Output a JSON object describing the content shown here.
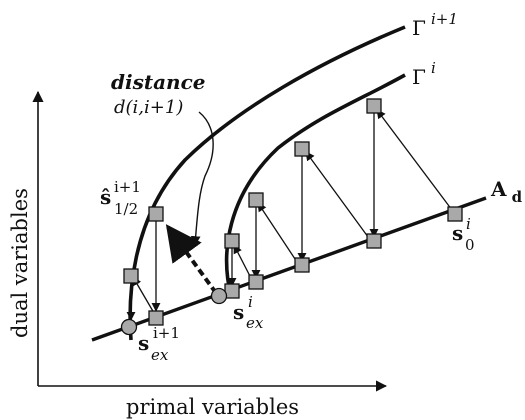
{
  "axes": {
    "x_label": "primal variables",
    "y_label": "dual variables"
  },
  "annotation": {
    "title": "distance",
    "formula": "d(i,i+1)"
  },
  "labels": {
    "gamma_next": {
      "base": "Γ",
      "sup": "i+1"
    },
    "gamma_i": {
      "base": "Γ",
      "sup": "i"
    },
    "a_d": {
      "base": "A",
      "sub": "d"
    },
    "s_hat": {
      "base": "ŝ",
      "sup": "i+1",
      "sub": "1/2"
    },
    "s_ex_i": {
      "base": "s",
      "sup": "i",
      "sub": "ex"
    },
    "s_ex_next": {
      "base": "s",
      "sup": "i+1",
      "sub": "ex"
    },
    "s_0": {
      "base": "s",
      "sup": "i",
      "sub": "0"
    }
  },
  "colors": {
    "ink": "#111111",
    "marker_fill": "#a9a9a9"
  }
}
